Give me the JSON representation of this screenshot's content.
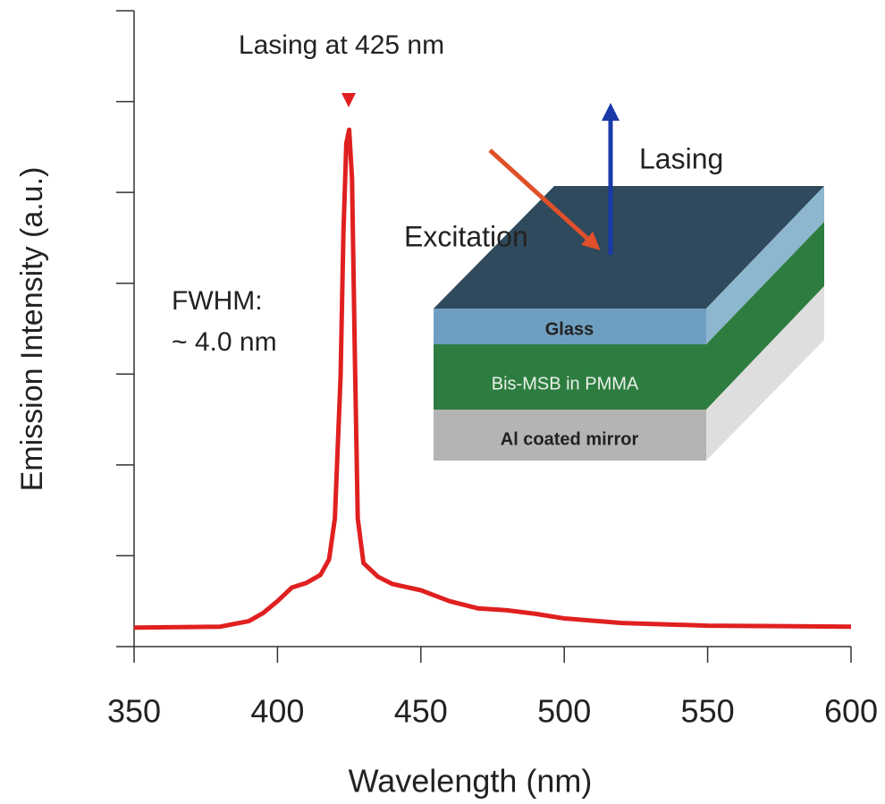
{
  "chart_data": {
    "type": "line",
    "x_label": "Wavelength (nm)",
    "y_label": "Emission Intensity (a.u.)",
    "annotations": [
      "Lasing at 425 nm",
      "FWHM:",
      "~ 4.0 nm"
    ],
    "x": [
      350,
      380,
      390,
      395,
      400,
      405,
      410,
      415,
      418,
      420,
      422,
      423,
      424,
      425,
      426,
      427,
      428,
      430,
      435,
      440,
      450,
      460,
      470,
      480,
      490,
      500,
      520,
      550,
      600
    ],
    "values": [
      0.21,
      0.22,
      0.28,
      0.37,
      0.5,
      0.65,
      0.7,
      0.79,
      0.96,
      1.41,
      2.98,
      4.56,
      5.54,
      5.69,
      5.15,
      3.18,
      1.41,
      0.92,
      0.77,
      0.69,
      0.62,
      0.5,
      0.42,
      0.4,
      0.36,
      0.31,
      0.26,
      0.23,
      0.22
    ],
    "color": "#e02020",
    "xlim": [
      350,
      600
    ],
    "xticks": [
      350,
      400,
      450,
      500,
      550,
      600
    ],
    "ylim": [
      0,
      7
    ],
    "yticks": [
      0,
      1,
      2,
      3,
      4,
      5,
      6,
      7
    ],
    "grid": false
  },
  "inset": {
    "layers": [
      "Glass",
      "Bis-MSB in PMMA",
      "Al coated mirror"
    ],
    "arrows": [
      "Lasing",
      "Excitation"
    ]
  }
}
